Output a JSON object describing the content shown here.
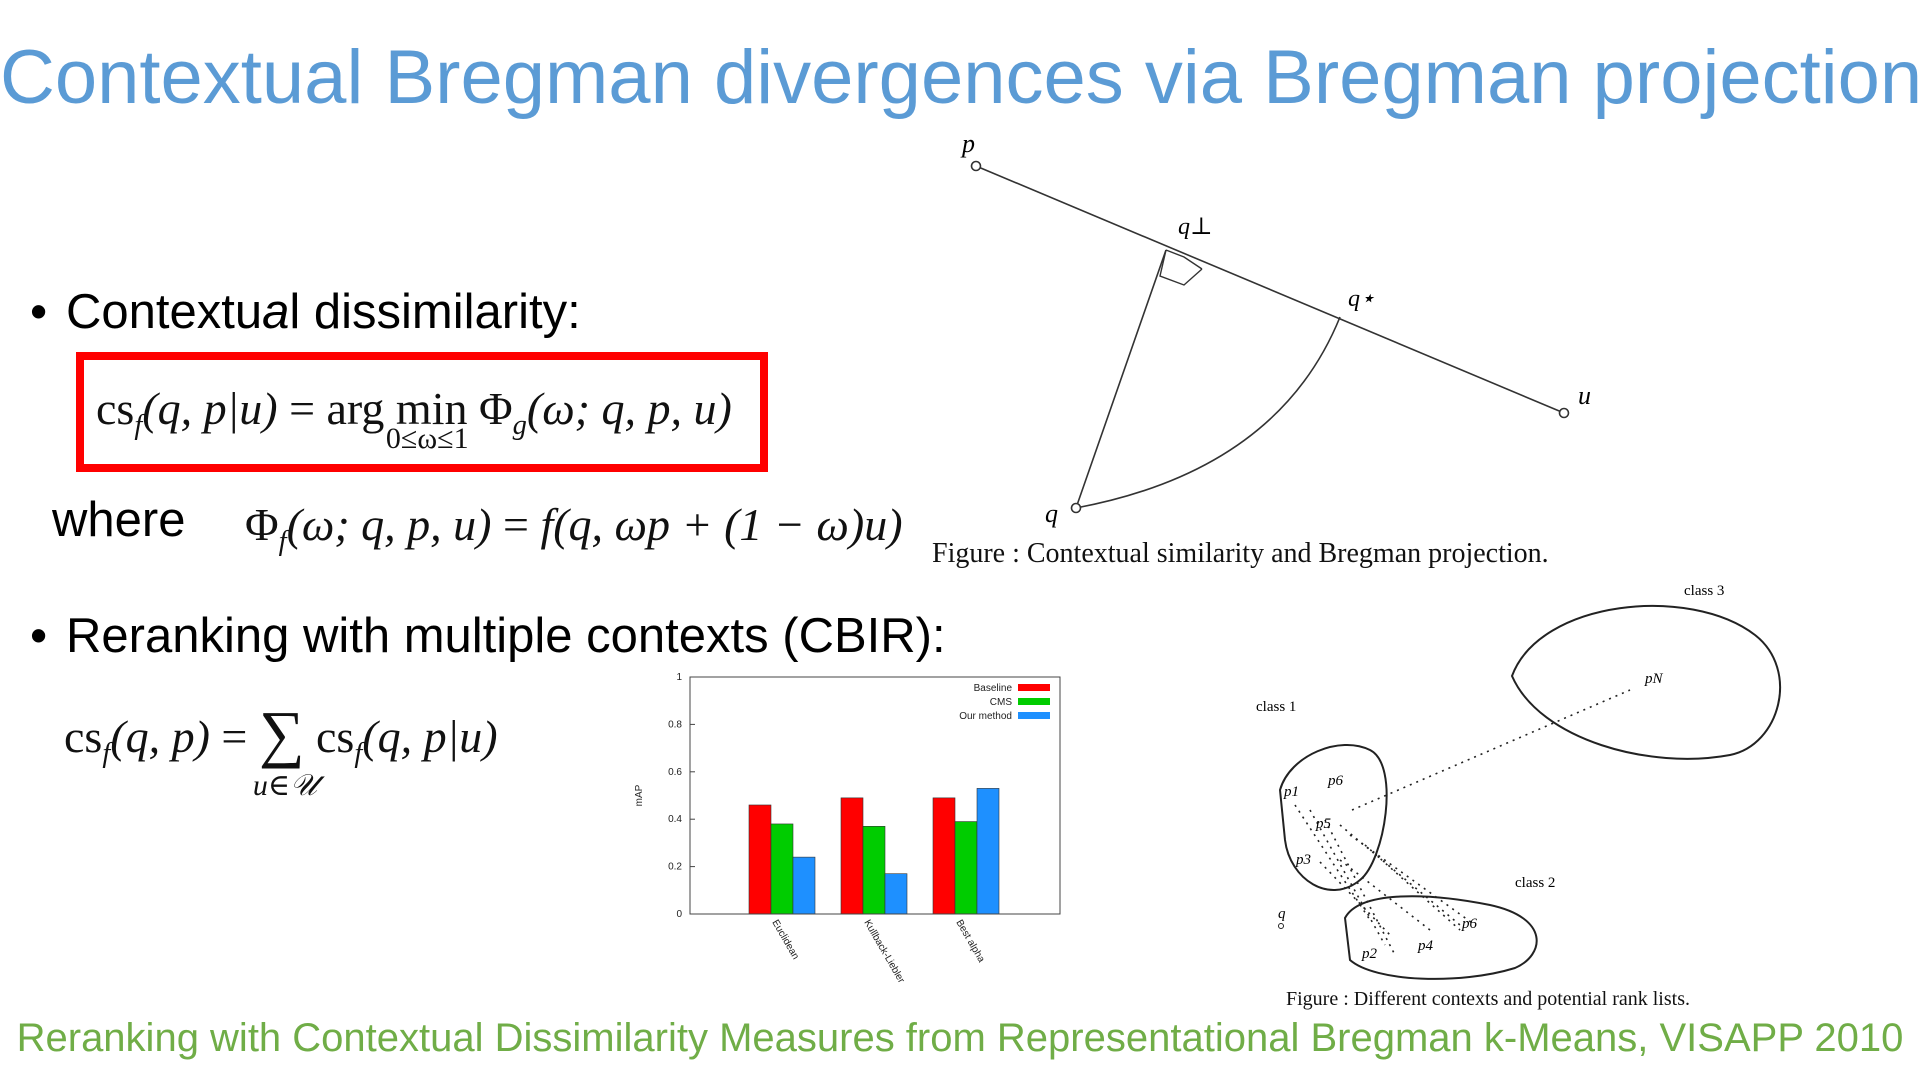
{
  "slide": {
    "title": "Contextual Bregman divergences via Bregman projections",
    "citation": "Reranking with Contextual Dissimilarity Measures from Representational Bregman k-Means, VISAPP 2010"
  },
  "bullets": {
    "b1_pre": "Contextu",
    "b1_ital": "a",
    "b1_post": "l dissimilarity:",
    "b2": "Reranking with multiple contexts (CBIR):"
  },
  "formulas": {
    "f1": {
      "lhs_cs": "cs",
      "lhs_sub": "f",
      "lhs_args": "(q, p|u)",
      "eq": "=",
      "arg": "arg",
      "min": "min",
      "min_lim": "0≤ω≤1",
      "phi": "Φ",
      "phi_sub": "g",
      "phi_args": "(ω; q, p, u)"
    },
    "where_label": "where",
    "f2": {
      "phi": "Φ",
      "phi_sub": "f",
      "phi_args": "(ω; q, p, u)",
      "eq": "=",
      "rhs": "f(q, ωp + (1 − ω)u)"
    },
    "f3": {
      "lhs_cs": "cs",
      "lhs_sub": "f",
      "lhs_args": "(q, p)",
      "eq": "=",
      "sum": "∑",
      "sum_lim": "u∈𝒰",
      "rhs_cs": "cs",
      "rhs_sub": "f",
      "rhs_args": "(q, p|u)"
    }
  },
  "figure1": {
    "caption": "Figure   : Contextual similarity and Bregman projection.",
    "labels": {
      "p": "p",
      "q_perp": "q⊥",
      "q_star": "q⋆",
      "u": "u",
      "q": "q"
    }
  },
  "figure2": {
    "caption": "Figure   : Different contexts and potential rank lists.",
    "labels": {
      "class1": "class 1",
      "class2": "class 2",
      "class3": "class 3",
      "p1": "p1",
      "p6a": "p6",
      "p5": "p5",
      "p3": "p3",
      "q": "q",
      "p2": "p2",
      "p4": "p4",
      "p6b": "p6",
      "pN": "pN"
    }
  },
  "chart_data": {
    "type": "bar",
    "categories": [
      "Euclidean",
      "Kullback-Liebler",
      "Best alpha"
    ],
    "series": [
      {
        "name": "Baseline",
        "values": [
          0.46,
          0.49,
          0.49
        ],
        "color": "#ff0000"
      },
      {
        "name": "CMS",
        "values": [
          0.38,
          0.37,
          0.39
        ],
        "color": "#00cc00"
      },
      {
        "name": "Our method",
        "values": [
          0.24,
          0.17,
          0.53
        ],
        "color": "#1e90ff"
      }
    ],
    "ylabel": "mAP",
    "xlabel": "",
    "ylim": [
      0,
      1
    ],
    "yticks": [
      "0",
      "0.2",
      "0.4",
      "0.6",
      "0.8",
      "1"
    ],
    "legend_position": "top-right",
    "grid": false
  }
}
